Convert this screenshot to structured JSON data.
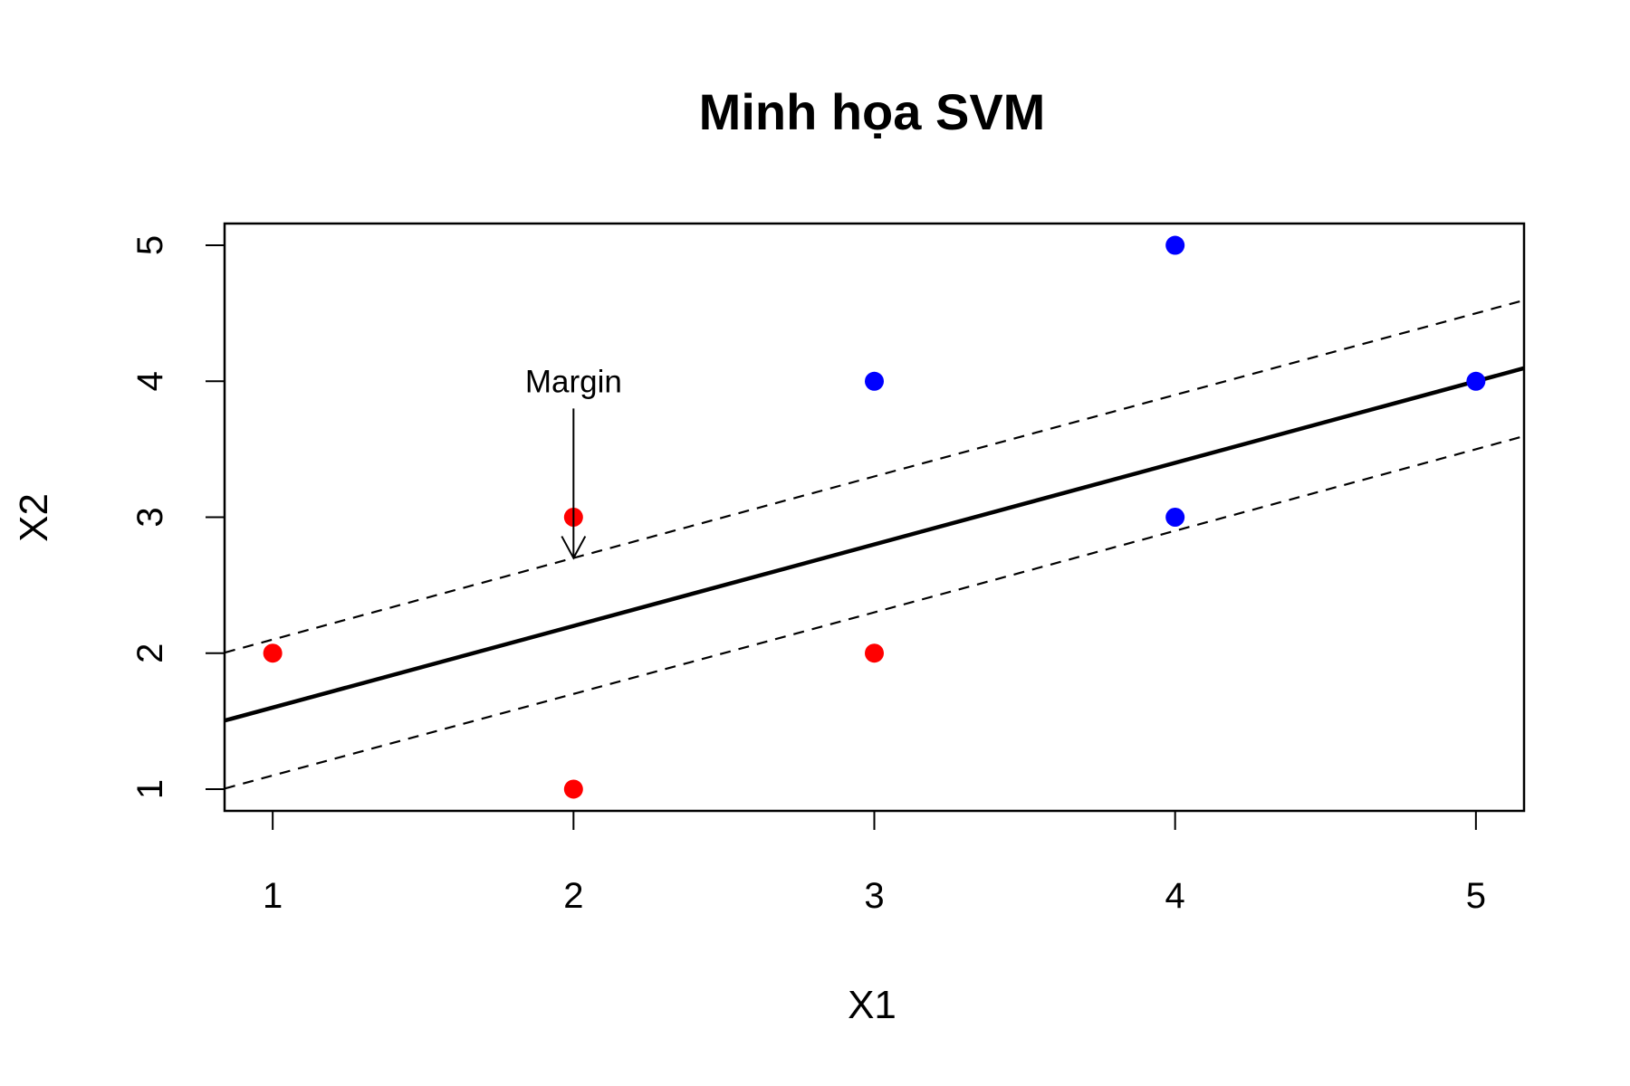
{
  "chart_data": {
    "type": "scatter",
    "title": "Minh họa SVM",
    "xlabel": "X1",
    "ylabel": "X2",
    "xlim": [
      0.84,
      5.16
    ],
    "ylim": [
      0.84,
      5.16
    ],
    "xticks": [
      1,
      2,
      3,
      4,
      5
    ],
    "yticks": [
      1,
      2,
      3,
      4,
      5
    ],
    "grid": false,
    "series": [
      {
        "color": "#ff0000",
        "points": [
          [
            1,
            2
          ],
          [
            2,
            3
          ],
          [
            3,
            2
          ],
          [
            2,
            1
          ]
        ]
      },
      {
        "color": "#0000ff",
        "points": [
          [
            4,
            5
          ],
          [
            3,
            4
          ],
          [
            5,
            4
          ],
          [
            4,
            3
          ]
        ]
      }
    ],
    "lines": [
      {
        "style": "solid",
        "intercept": 1.0,
        "slope": 0.6
      },
      {
        "style": "dashed",
        "intercept": 1.5,
        "slope": 0.6
      },
      {
        "style": "dashed",
        "intercept": 0.5,
        "slope": 0.6
      }
    ],
    "annotations": [
      {
        "text": "Margin",
        "x": 2,
        "y": 4.0,
        "arrow_from": [
          2,
          3.8
        ],
        "arrow_to": [
          2,
          2.7
        ]
      }
    ]
  }
}
